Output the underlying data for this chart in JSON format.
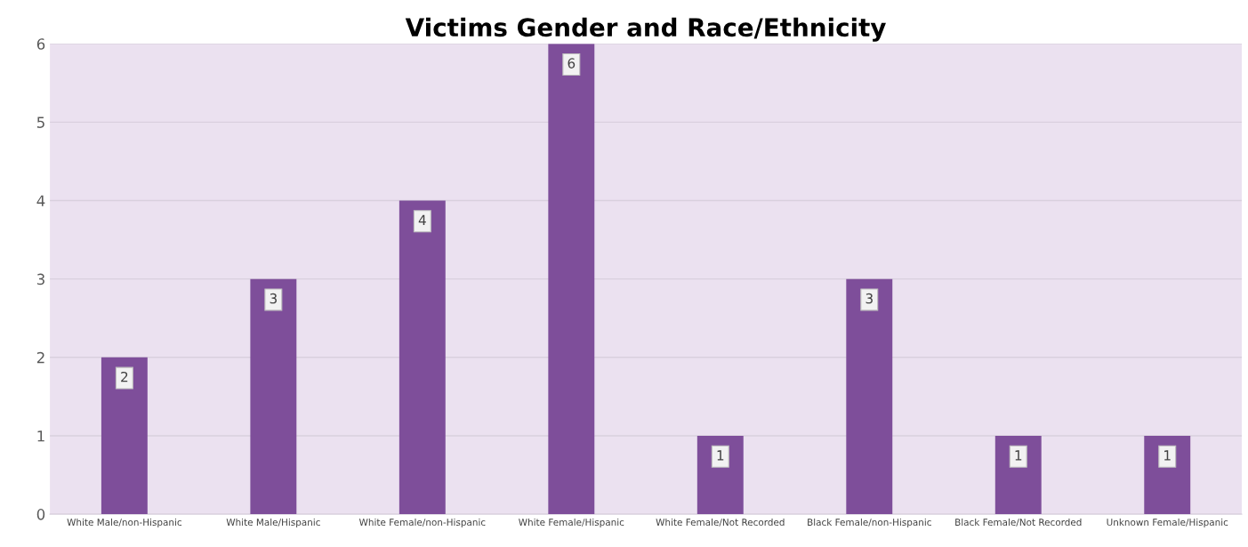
{
  "chart_data": {
    "type": "bar",
    "title": "Victims Gender and Race/Ethnicity",
    "categories": [
      "White Male/non-Hispanic",
      "White Male/Hispanic",
      "White Female/non-Hispanic",
      "White Female/Hispanic",
      "White Female/Not Recorded",
      "Black Female/non-Hispanic",
      "Black Female/Not Recorded",
      "Unknown Female/Hispanic"
    ],
    "values": [
      2,
      3,
      4,
      6,
      1,
      3,
      1,
      1
    ],
    "color": "#7e4e9a",
    "ylim": [
      0,
      6
    ],
    "yticks": [
      0,
      1,
      2,
      3,
      4,
      5,
      6
    ],
    "grid": "y",
    "data_labels": true
  }
}
